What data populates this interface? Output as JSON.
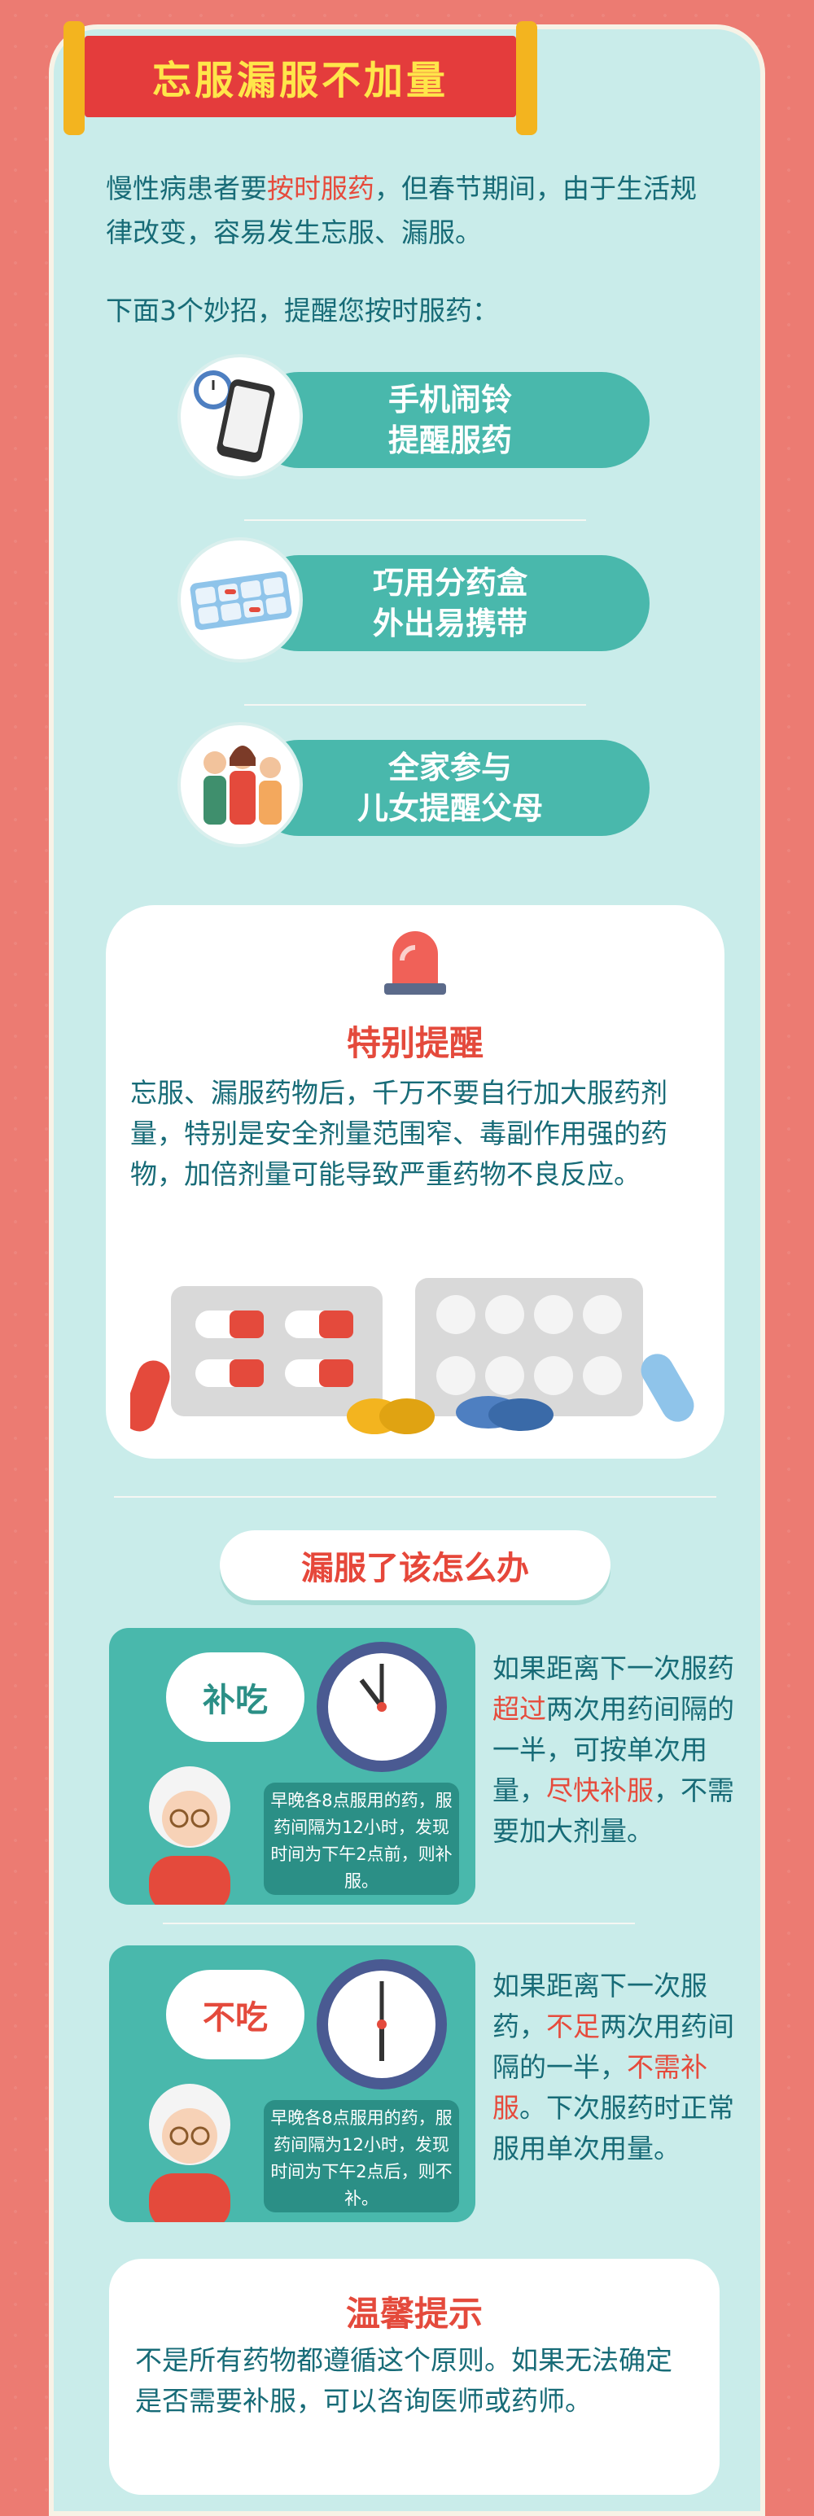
{
  "banner": {
    "title": "忘服漏服不加量"
  },
  "intro": {
    "part1": "慢性病患者要",
    "highlight": "按时服药",
    "part2": "，但春节期间，由于生活规律改变，容易发生忘服、漏服。"
  },
  "tips_intro": "下面3个妙招，提醒您按时服药：",
  "tips": [
    {
      "line1": "手机闹铃",
      "line2": "提醒服药",
      "icon": "phone-alarm-icon"
    },
    {
      "line1": "巧用分药盒",
      "line2": "外出易携带",
      "icon": "pill-box-icon"
    },
    {
      "line1": "全家参与",
      "line2": "儿女提醒父母",
      "icon": "family-icon"
    }
  ],
  "warning": {
    "title": "特别提醒",
    "text": "忘服、漏服药物后，千万不要自行加大服药剂量，特别是安全剂量范围窄、毒副作用强的药物，加倍剂量可能导致严重药物不良反应。",
    "icon": "alarm-siren-icon"
  },
  "missed": {
    "title": "漏服了该怎么办",
    "case1": {
      "bubble": "补吃",
      "note": "早晚各8点服用的药，服药间隔为12小时，发现时间为下午2点前，则补服。",
      "text_a": "如果距离下一次服药",
      "red_a": "超过",
      "text_b": "两次用药间隔的一半，可按单次用量，",
      "red_b": "尽快补服",
      "text_c": "，不需要加大剂量。"
    },
    "case2": {
      "bubble": "不吃",
      "note": "早晚各8点服用的药，服药间隔为12小时，发现时间为下午2点后，则不补。",
      "text_a": "如果距离下一次服药，",
      "red_a": "不足",
      "text_b": "两次用药间隔的一半，",
      "red_b": "不需补服",
      "text_c": "。下次服药时正常服用单次用量。"
    }
  },
  "reminder": {
    "title": "温馨提示",
    "text": "不是所有药物都遵循这个原则。如果无法确定是否需要补服，可以咨询医师或药师。"
  },
  "colors": {
    "background": "#ec7b72",
    "panel": "#c9ecea",
    "accent": "#49b8ac",
    "red": "#e44a3c",
    "text": "#176b77"
  }
}
